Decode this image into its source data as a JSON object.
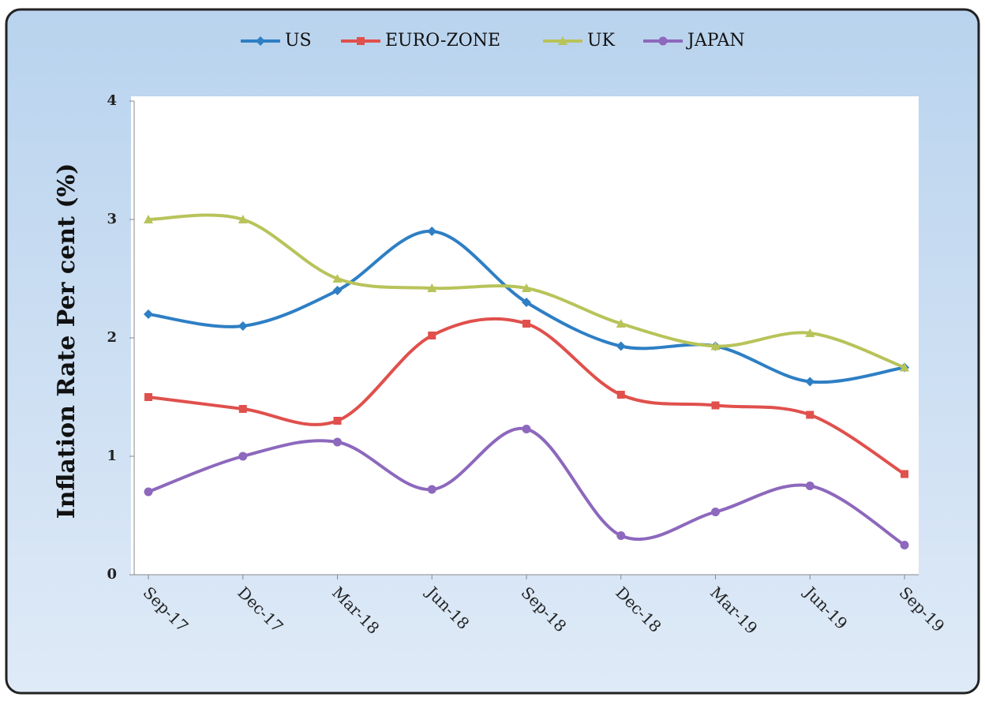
{
  "chart_data": {
    "type": "line",
    "y_label": "Inflation Rate Per cent (%)",
    "categories": [
      "Sep-17",
      "Dec-17",
      "Mar-18",
      "Jun-18",
      "Sep-18",
      "Dec-18",
      "Mar-19",
      "Jun-19",
      "Sep-19"
    ],
    "series": [
      {
        "name": "US",
        "color": "#2e7fc4",
        "marker": "diamond",
        "values": [
          2.2,
          2.1,
          2.4,
          2.9,
          2.3,
          1.93,
          1.93,
          1.63,
          1.75
        ]
      },
      {
        "name": "EURO-ZONE",
        "color": "#e0504c",
        "marker": "square",
        "values": [
          1.5,
          1.4,
          1.3,
          2.02,
          2.12,
          1.52,
          1.43,
          1.35,
          0.85
        ]
      },
      {
        "name": "UK",
        "color": "#b8c35a",
        "marker": "triangle",
        "values": [
          3.0,
          3.0,
          2.5,
          2.42,
          2.42,
          2.12,
          1.93,
          2.04,
          1.75
        ]
      },
      {
        "name": "JAPAN",
        "color": "#8d68bd",
        "marker": "circle",
        "values": [
          0.7,
          1.0,
          1.12,
          0.72,
          1.23,
          0.33,
          0.53,
          0.75,
          0.25
        ]
      }
    ],
    "ylim": [
      0,
      4
    ],
    "yticks": [
      0,
      1,
      2,
      3,
      4
    ],
    "legend": "top",
    "smooth": true
  }
}
